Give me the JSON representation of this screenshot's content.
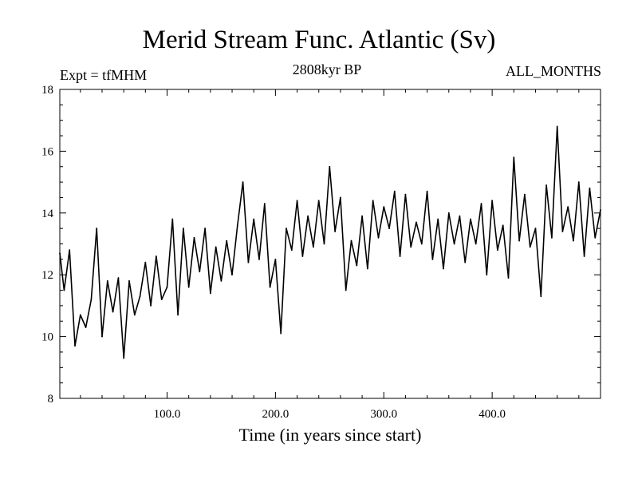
{
  "chart_data": {
    "type": "line",
    "title": "Merid Stream Func. Atlantic (Sv)",
    "expt_label": "Expt = tfMHM",
    "period_label": "2808kyr BP",
    "months_label": "ALL_MONTHS",
    "xlabel": "Time (in years since start)",
    "ylabel": "",
    "xlim": [
      1,
      500
    ],
    "ylim": [
      8,
      18
    ],
    "xticks": [
      100,
      200,
      300,
      400
    ],
    "xtick_labels": [
      "100.0",
      "200.0",
      "300.0",
      "400.0"
    ],
    "yticks": [
      8,
      10,
      12,
      14,
      16,
      18
    ],
    "ytick_labels": [
      "8",
      "10",
      "12",
      "14",
      "16",
      "18"
    ],
    "series": [
      {
        "name": "Merid Stream Func. Atlantic",
        "color": "#000000",
        "x": [
          1,
          5,
          10,
          15,
          20,
          25,
          30,
          35,
          40,
          45,
          50,
          55,
          60,
          65,
          70,
          75,
          80,
          85,
          90,
          95,
          100,
          105,
          110,
          115,
          120,
          125,
          130,
          135,
          140,
          145,
          150,
          155,
          160,
          165,
          170,
          175,
          180,
          185,
          190,
          195,
          200,
          205,
          210,
          215,
          220,
          225,
          230,
          235,
          240,
          245,
          250,
          255,
          260,
          265,
          270,
          275,
          280,
          285,
          290,
          295,
          300,
          305,
          310,
          315,
          320,
          325,
          330,
          335,
          340,
          345,
          350,
          355,
          360,
          365,
          370,
          375,
          380,
          385,
          390,
          395,
          400,
          405,
          410,
          415,
          420,
          425,
          430,
          435,
          440,
          445,
          450,
          455,
          460,
          465,
          470,
          475,
          480,
          485,
          490,
          495,
          500
        ],
        "values": [
          12.7,
          11.5,
          12.8,
          9.7,
          10.7,
          10.3,
          11.2,
          13.5,
          10.0,
          11.8,
          10.8,
          11.9,
          9.3,
          11.8,
          10.7,
          11.3,
          12.4,
          11.0,
          12.6,
          11.2,
          11.6,
          13.8,
          10.7,
          13.5,
          11.6,
          13.2,
          12.1,
          13.5,
          11.4,
          12.9,
          11.8,
          13.1,
          12.0,
          13.6,
          15.0,
          12.4,
          13.8,
          12.5,
          14.3,
          11.6,
          12.5,
          10.1,
          13.5,
          12.8,
          14.4,
          12.6,
          13.9,
          12.9,
          14.4,
          13.0,
          15.5,
          13.4,
          14.5,
          11.5,
          13.1,
          12.3,
          13.9,
          12.2,
          14.4,
          13.2,
          14.2,
          13.5,
          14.7,
          12.6,
          14.6,
          12.9,
          13.7,
          13.0,
          14.7,
          12.5,
          13.8,
          12.2,
          14.0,
          13.0,
          13.9,
          12.4,
          13.8,
          13.0,
          14.3,
          12.0,
          14.4,
          12.8,
          13.6,
          11.9,
          15.8,
          13.1,
          14.6,
          12.9,
          13.5,
          11.3,
          14.9,
          13.2,
          16.8,
          13.4,
          14.2,
          13.1,
          15.0,
          12.6,
          14.8,
          13.2,
          14.1
        ]
      }
    ]
  }
}
